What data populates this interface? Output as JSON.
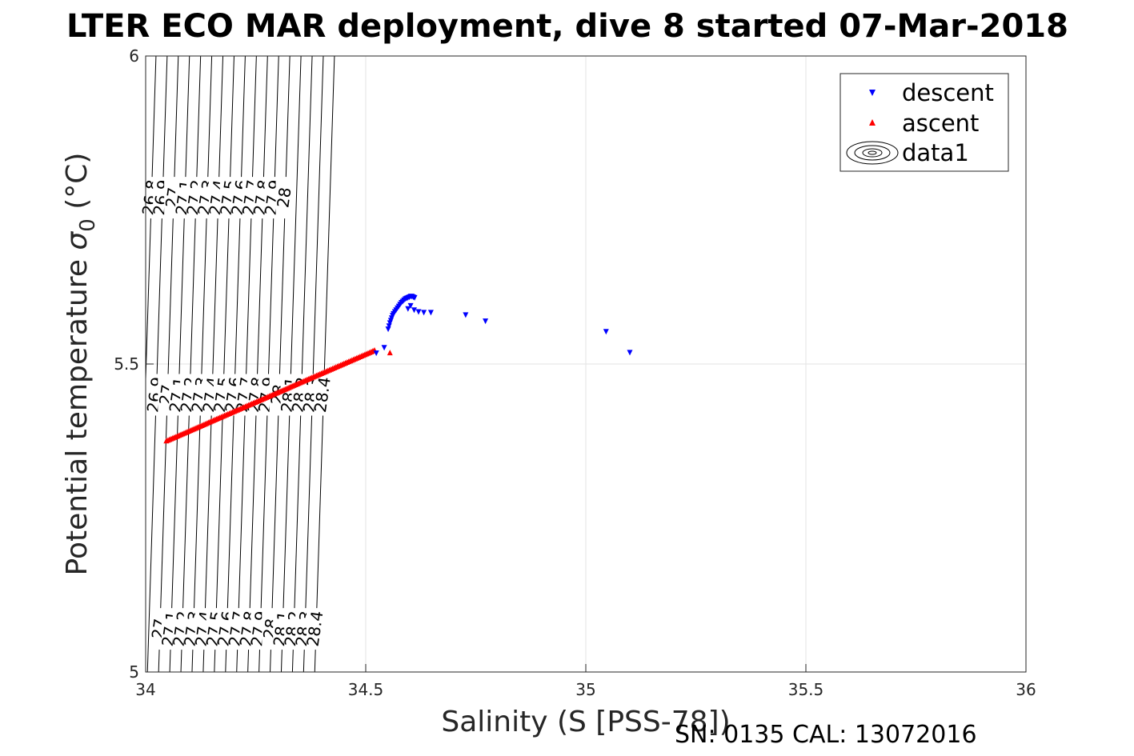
{
  "chart_data": {
    "type": "scatter",
    "title": "LTER ECO MAR deployment, dive 8 started 07-Mar-2018",
    "xlabel": "Salinity (S [PSS-78])",
    "ylabel_main": "Potential temperature ",
    "ylabel_symbol": "σ",
    "ylabel_sub": "0",
    "ylabel_unit": " (°C)",
    "xlim": [
      34,
      36
    ],
    "ylim": [
      5,
      6
    ],
    "xticks": [
      34,
      34.5,
      35,
      35.5,
      36
    ],
    "xtick_labels": [
      "34",
      "34.5",
      "35",
      "35.5",
      "36"
    ],
    "yticks": [
      5,
      5.5,
      6
    ],
    "ytick_labels": [
      "5",
      "5.5",
      "6"
    ],
    "grid": true,
    "legend_position": "top-right",
    "legend": [
      "descent",
      "ascent",
      "data1"
    ],
    "contour_levels": [
      "26.8",
      "26.9",
      "27",
      "27.1",
      "27.2",
      "27.3",
      "27.4",
      "27.5",
      "27.6",
      "27.7",
      "27.8",
      "27.9",
      "28",
      "28.1",
      "28.2",
      "28.3",
      "28.4"
    ],
    "contour_model": {
      "ref_s": 34,
      "ref_t": 5,
      "ref_sigma": 26.884,
      "ds_per_unit": 0.2534,
      "dt_slope": 0.0287
    },
    "series": [
      {
        "name": "descent",
        "marker": "triangle-down",
        "color": "#0000ff",
        "points": [
          [
            34.524,
            5.518
          ],
          [
            34.542,
            5.527
          ],
          [
            34.551,
            5.557
          ],
          [
            34.553,
            5.562
          ],
          [
            34.555,
            5.567
          ],
          [
            34.557,
            5.571
          ],
          [
            34.559,
            5.575
          ],
          [
            34.561,
            5.579
          ],
          [
            34.563,
            5.582
          ],
          [
            34.566,
            5.585
          ],
          [
            34.569,
            5.588
          ],
          [
            34.572,
            5.591
          ],
          [
            34.575,
            5.594
          ],
          [
            34.578,
            5.597
          ],
          [
            34.581,
            5.6
          ],
          [
            34.584,
            5.602
          ],
          [
            34.587,
            5.604
          ],
          [
            34.59,
            5.606
          ],
          [
            34.593,
            5.607
          ],
          [
            34.596,
            5.608
          ],
          [
            34.599,
            5.609
          ],
          [
            34.602,
            5.61
          ],
          [
            34.605,
            5.61
          ],
          [
            34.608,
            5.609
          ],
          [
            34.611,
            5.608
          ],
          [
            34.596,
            5.59
          ],
          [
            34.602,
            5.595
          ],
          [
            34.61,
            5.588
          ],
          [
            34.62,
            5.585
          ],
          [
            34.632,
            5.584
          ],
          [
            34.648,
            5.584
          ],
          [
            34.727,
            5.58
          ],
          [
            34.772,
            5.57
          ],
          [
            35.046,
            5.553
          ],
          [
            35.1,
            5.519
          ]
        ]
      },
      {
        "name": "ascent",
        "marker": "triangle-up",
        "color": "#ff0000",
        "start": [
          34.047,
          5.375
        ],
        "end": [
          34.52,
          5.522
        ],
        "count": 130,
        "points": [
          [
            34.555,
            5.518
          ]
        ]
      },
      {
        "name": "data1",
        "marker": "contour",
        "color": "#000000"
      }
    ]
  },
  "footer": "SN: 0135  CAL: 13072016"
}
